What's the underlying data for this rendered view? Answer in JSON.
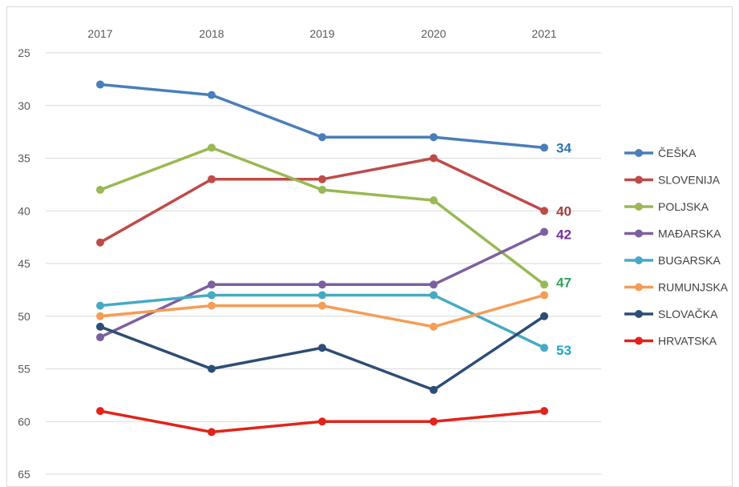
{
  "chart_data": {
    "type": "line",
    "x": [
      "2017",
      "2018",
      "2019",
      "2020",
      "2021"
    ],
    "y_ticks": [
      25,
      30,
      35,
      40,
      45,
      50,
      55,
      60,
      65
    ],
    "ylim": [
      25,
      65
    ],
    "y_inverted": true,
    "grid": "horizontal",
    "legend_position": "right",
    "series": [
      {
        "name": "ČEŠKA",
        "color": "#4a7ebb",
        "values": [
          28,
          29,
          33,
          33,
          34
        ],
        "end_label": "34",
        "end_label_color": "#2e75b6"
      },
      {
        "name": "SLOVENIJA",
        "color": "#be4b48",
        "values": [
          43,
          37,
          37,
          35,
          40
        ],
        "end_label": "40",
        "end_label_color": "#a0413e"
      },
      {
        "name": "POLJSKA",
        "color": "#98b954",
        "values": [
          38,
          34,
          38,
          39,
          47
        ],
        "end_label": "47",
        "end_label_color": "#2ea35a"
      },
      {
        "name": "MAĐARSKA",
        "color": "#7d60a0",
        "values": [
          52,
          47,
          47,
          47,
          42
        ],
        "end_label": "42",
        "end_label_color": "#7030a0"
      },
      {
        "name": "BUGARSKA",
        "color": "#46aac5",
        "values": [
          49,
          48,
          48,
          48,
          53
        ],
        "end_label": "53",
        "end_label_color": "#1ca6c6"
      },
      {
        "name": "RUMUNJSKA",
        "color": "#f59d56",
        "values": [
          50,
          49,
          49,
          51,
          48
        ],
        "end_label": "",
        "end_label_color": ""
      },
      {
        "name": "SLOVAČKA",
        "color": "#2c4d75",
        "values": [
          51,
          55,
          53,
          57,
          50
        ],
        "end_label": "",
        "end_label_color": ""
      },
      {
        "name": "HRVATSKA",
        "color": "#e2231a",
        "values": [
          59,
          61,
          60,
          60,
          59
        ],
        "end_label": "",
        "end_label_color": ""
      }
    ]
  }
}
